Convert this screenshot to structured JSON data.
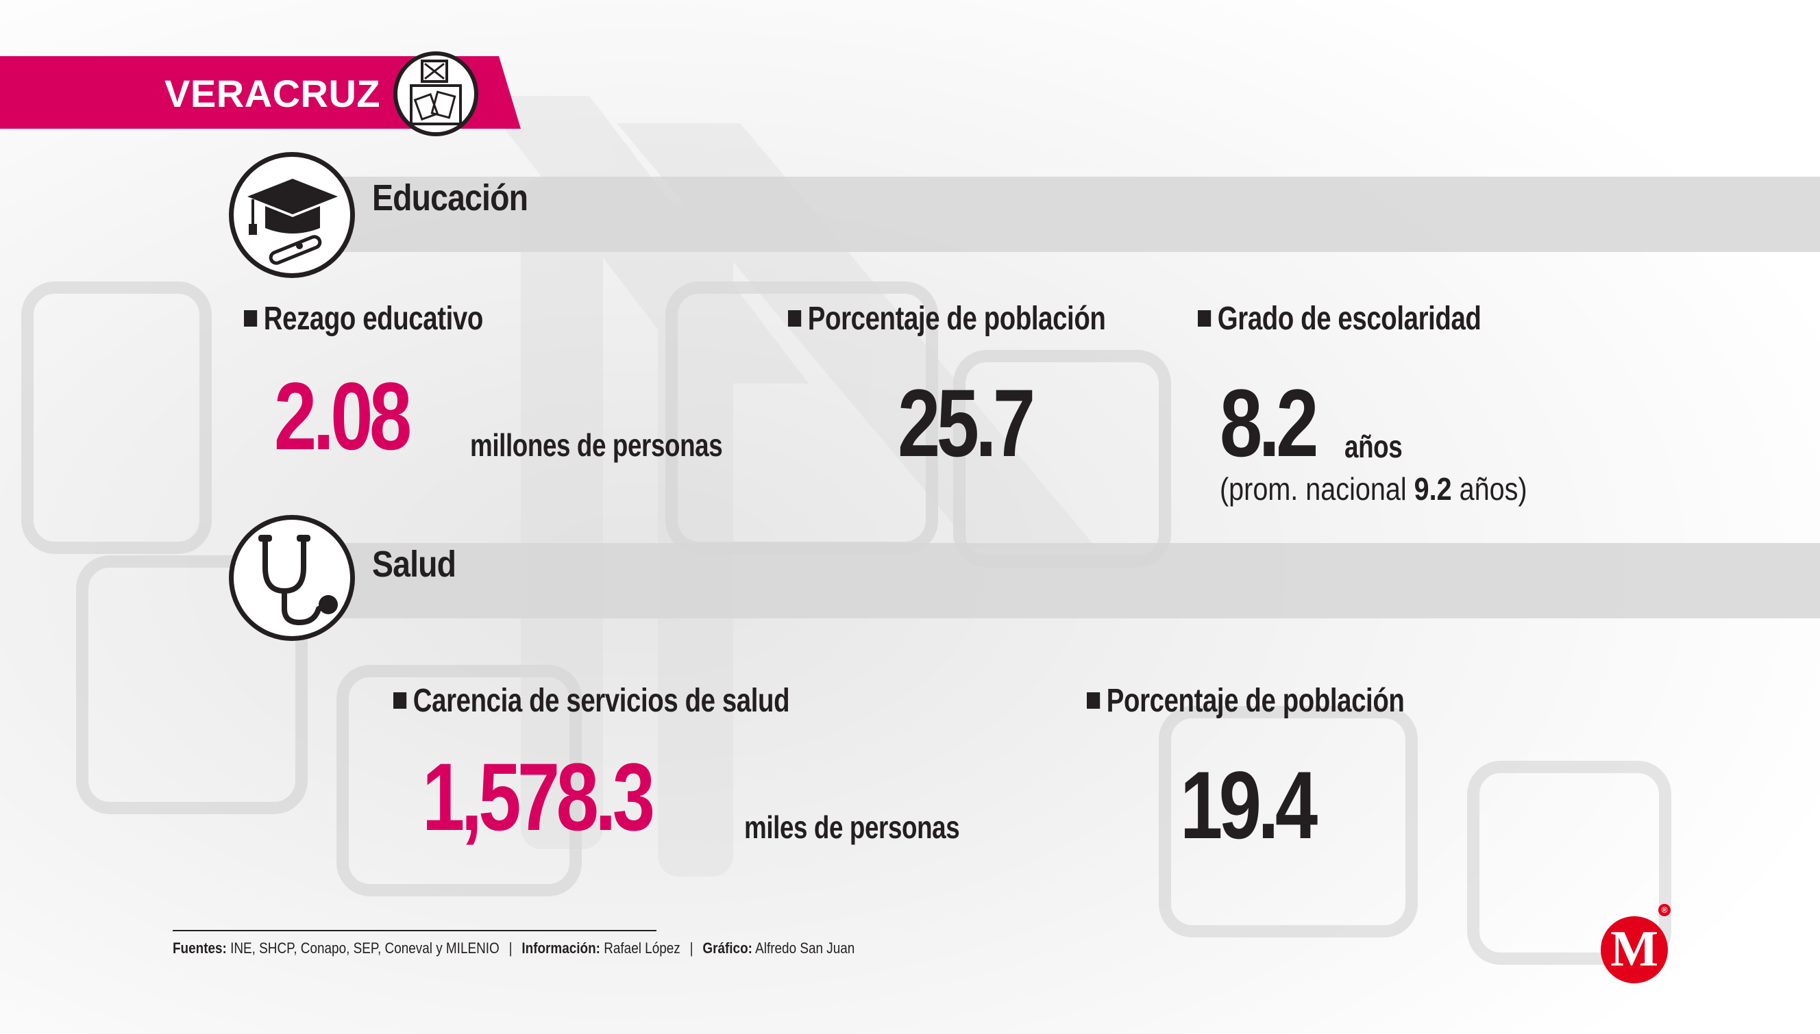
{
  "header": {
    "title": "VERACRUZ",
    "brand_color": "#d7005f",
    "badge_icon": "ballot-box-icon"
  },
  "education": {
    "title": "Educación",
    "icon": "graduation-cap-diploma-icon",
    "stats": [
      {
        "label": "Rezago educativo",
        "value": "2.08",
        "unit": "millones de personas"
      },
      {
        "label": "Porcentaje de población",
        "value": "25.7"
      },
      {
        "label": "Grado de escolaridad",
        "value": "8.2",
        "unit": "años",
        "note_prefix": "(prom. nacional ",
        "note_value": "9.2",
        "note_suffix": " años)"
      }
    ]
  },
  "health": {
    "title": "Salud",
    "icon": "stethoscope-icon",
    "stats": [
      {
        "label": "Carencia de servicios de salud",
        "value": "1,578.3",
        "unit": "miles de personas"
      },
      {
        "label": "Porcentaje de población",
        "value": "19.4"
      }
    ]
  },
  "footer": {
    "sources_label": "Fuentes:",
    "sources": "INE, SHCP, Conapo, SEP, Coneval y MILENIO",
    "info_label": "Información:",
    "info": "Rafael López",
    "graphic_label": "Gráfico:",
    "graphic": "Alfredo San Juan",
    "separator": "|"
  },
  "logo": {
    "letter": "M",
    "registered": "®",
    "color": "#e2001a",
    "icon": "milenio-logo-icon"
  },
  "colors": {
    "accent": "#d7005f",
    "text": "#231f20",
    "bar": "#d6d6d6"
  }
}
